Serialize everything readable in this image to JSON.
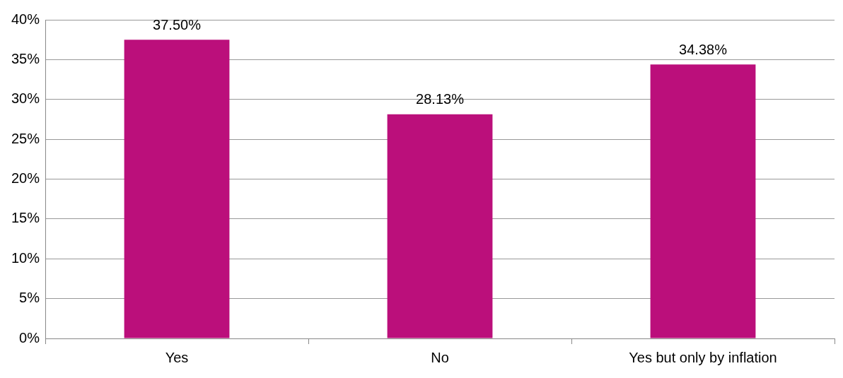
{
  "chart_data": {
    "type": "bar",
    "categories": [
      "Yes",
      "No",
      "Yes but only by inflation"
    ],
    "values": [
      37.5,
      28.13,
      34.38
    ],
    "color": "#bb0f7b",
    "value_labels": [
      "37.50%",
      "28.13%",
      "34.38%"
    ],
    "ylim": [
      0,
      40
    ],
    "yticks": [
      {
        "value": 0,
        "label": "0%"
      },
      {
        "value": 5,
        "label": "5%"
      },
      {
        "value": 10,
        "label": "10%"
      },
      {
        "value": 15,
        "label": "15%"
      },
      {
        "value": 20,
        "label": "20%"
      },
      {
        "value": 25,
        "label": "25%"
      },
      {
        "value": 30,
        "label": "30%"
      },
      {
        "value": 35,
        "label": "35%"
      },
      {
        "value": 40,
        "label": "40%"
      }
    ],
    "grid": "y",
    "legend": false
  }
}
